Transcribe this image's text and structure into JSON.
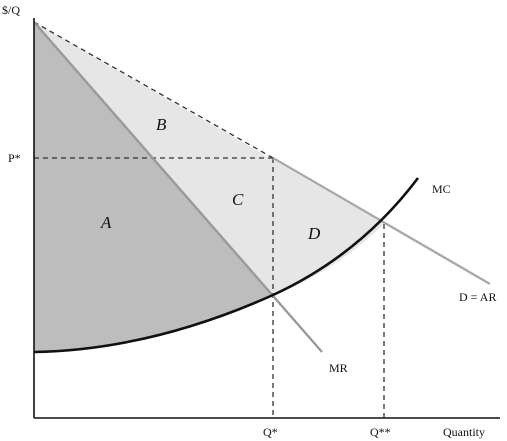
{
  "diagram": {
    "y_axis_label": "$/Q",
    "x_axis_label": "Quantity",
    "price_label": "P*",
    "q_star_label": "Q*",
    "q_double_star_label": "Q**",
    "curve_labels": {
      "mc": "MC",
      "mr": "MR",
      "demand": "D = AR"
    },
    "region_labels": {
      "a": "A",
      "b": "B",
      "c": "C",
      "d": "D"
    },
    "colors": {
      "dark_region": "#bdbdbd",
      "light_region": "#e6e6e6",
      "demand_line": "#a9a9a9",
      "mr_line": "#9a9a9a",
      "mc_curve": "#111111",
      "axes": "#111111",
      "dashed": "#333333"
    }
  }
}
